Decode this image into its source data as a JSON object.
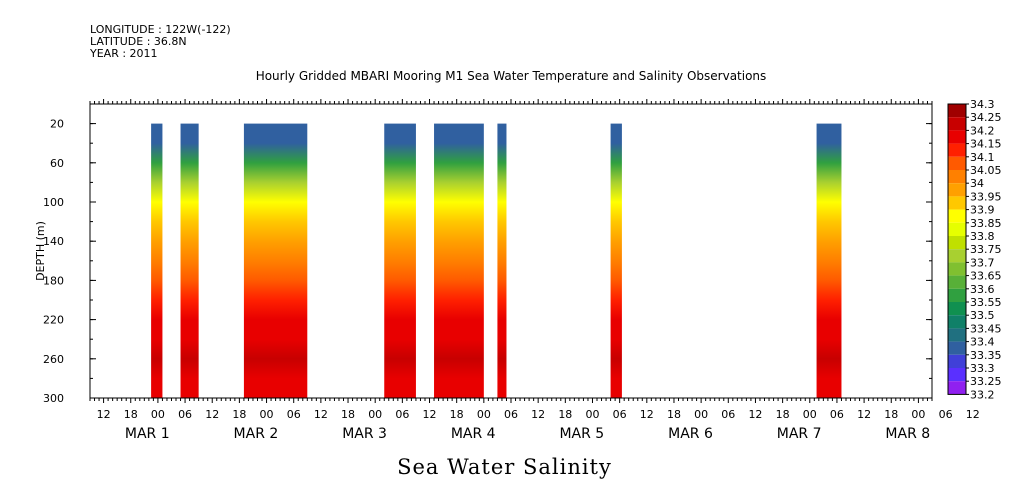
{
  "header": {
    "longitude": "LONGITUDE : 122W(-122)",
    "latitude": "LATITUDE : 36.8N",
    "year": "YEAR : 2011"
  },
  "caption": "Sea Water Salinity",
  "chart_data": {
    "type": "heatmap",
    "title": "Hourly Gridded MBARI Mooring M1 Sea Water Temperature and Salinity Observations",
    "ylabel": "DEPTH (m)",
    "xlabel": "",
    "ylim": [
      300,
      0
    ],
    "y_ticks": [
      20,
      60,
      100,
      140,
      180,
      220,
      260,
      300
    ],
    "x_range_hours_from_mar1_00": [
      -15,
      171
    ],
    "x_hour_ticks": [
      "12",
      "18",
      "00",
      "06",
      "12",
      "18",
      "00",
      "06",
      "12",
      "18",
      "00",
      "06",
      "12",
      "18",
      "00",
      "06",
      "12",
      "18",
      "00",
      "06",
      "12",
      "18",
      "00",
      "06",
      "12",
      "18",
      "00",
      "06",
      "12",
      "18",
      "00",
      "06",
      "12"
    ],
    "x_date_labels": [
      {
        "label": "MAR  1",
        "hour": 0
      },
      {
        "label": "MAR  2",
        "hour": 24
      },
      {
        "label": "MAR  3",
        "hour": 48
      },
      {
        "label": "MAR  4",
        "hour": 72
      },
      {
        "label": "MAR  5",
        "hour": 96
      },
      {
        "label": "MAR  6",
        "hour": 120
      },
      {
        "label": "MAR  7",
        "hour": 144
      },
      {
        "label": "MAR  8",
        "hour": 168
      }
    ],
    "colorbar": {
      "levels": [
        "34.3",
        "34.25",
        "34.2",
        "34.15",
        "34.1",
        "34.05",
        "34",
        "33.95",
        "33.9",
        "33.85",
        "33.8",
        "33.75",
        "33.7",
        "33.65",
        "33.6",
        "33.55",
        "33.5",
        "33.45",
        "33.4",
        "33.35",
        "33.3",
        "33.25",
        "33.2"
      ],
      "colors": [
        "#a00000",
        "#c80000",
        "#e80000",
        "#ff2000",
        "#ff5a00",
        "#ff8000",
        "#ffa000",
        "#ffc800",
        "#ffff00",
        "#e6ff00",
        "#c0e000",
        "#a8d030",
        "#80c030",
        "#58b038",
        "#30a040",
        "#109050",
        "#108068",
        "#207080",
        "#3060a0",
        "#4040d8",
        "#5a30ff",
        "#9020f0",
        "#d020f0"
      ]
    },
    "depth_profile": [
      {
        "depth": 20,
        "salinity": 33.35
      },
      {
        "depth": 40,
        "salinity": 33.36
      },
      {
        "depth": 60,
        "salinity": 33.55
      },
      {
        "depth": 80,
        "salinity": 33.72
      },
      {
        "depth": 100,
        "salinity": 33.85
      },
      {
        "depth": 120,
        "salinity": 33.93
      },
      {
        "depth": 140,
        "salinity": 33.98
      },
      {
        "depth": 160,
        "salinity": 34.03
      },
      {
        "depth": 180,
        "salinity": 34.06
      },
      {
        "depth": 200,
        "salinity": 34.1
      },
      {
        "depth": 220,
        "salinity": 34.15
      },
      {
        "depth": 240,
        "salinity": 34.18
      },
      {
        "depth": 260,
        "salinity": 34.22
      },
      {
        "depth": 280,
        "salinity": 34.18
      },
      {
        "depth": 300,
        "salinity": 34.15
      }
    ],
    "data_segments": [
      {
        "start_hour": -1.5,
        "end_hour": 1.0
      },
      {
        "start_hour": 5.0,
        "end_hour": 9.0
      },
      {
        "start_hour": 19.0,
        "end_hour": 33.0
      },
      {
        "start_hour": 50.0,
        "end_hour": 57.0
      },
      {
        "start_hour": 61.0,
        "end_hour": 72.0
      },
      {
        "start_hour": 75.0,
        "end_hour": 77.0
      },
      {
        "start_hour": 100.0,
        "end_hour": 102.5
      },
      {
        "start_hour": 145.5,
        "end_hour": 151.0
      }
    ]
  }
}
